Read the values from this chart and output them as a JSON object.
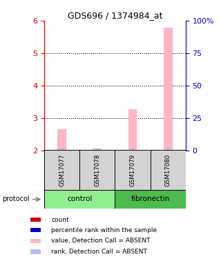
{
  "title": "GDS696 / 1374984_at",
  "samples": [
    "GSM17077",
    "GSM17078",
    "GSM17079",
    "GSM17080"
  ],
  "groups": [
    "control",
    "control",
    "fibronectin",
    "fibronectin"
  ],
  "bar_values": [
    2.65,
    2.05,
    3.28,
    5.78
  ],
  "rank_values": [
    2.08,
    2.06,
    2.07,
    2.12
  ],
  "ylim_left": [
    2,
    6
  ],
  "ylim_right": [
    0,
    100
  ],
  "yticks_left": [
    2,
    3,
    4,
    5,
    6
  ],
  "yticks_right": [
    0,
    25,
    50,
    75,
    100
  ],
  "ytick_labels_right": [
    "0",
    "25",
    "50",
    "75",
    "100%"
  ],
  "bar_color_absent": "#FFB6C1",
  "rank_color_absent": "#B8B8FF",
  "left_axis_color": "#CC0000",
  "right_axis_color": "#0000CC",
  "sample_box_color": "#D3D3D3",
  "control_color": "#90EE90",
  "fibronectin_color": "#4CBB4C",
  "legend_items": [
    {
      "color": "#CC0000",
      "label": "count"
    },
    {
      "color": "#0000CC",
      "label": "percentile rank within the sample"
    },
    {
      "color": "#FFB6C1",
      "label": "value, Detection Call = ABSENT"
    },
    {
      "color": "#B8B8FF",
      "label": "rank, Detection Call = ABSENT"
    }
  ],
  "protocol_label": "protocol",
  "background_color": "#ffffff",
  "bar_width": 0.25,
  "rank_bar_width": 0.08
}
